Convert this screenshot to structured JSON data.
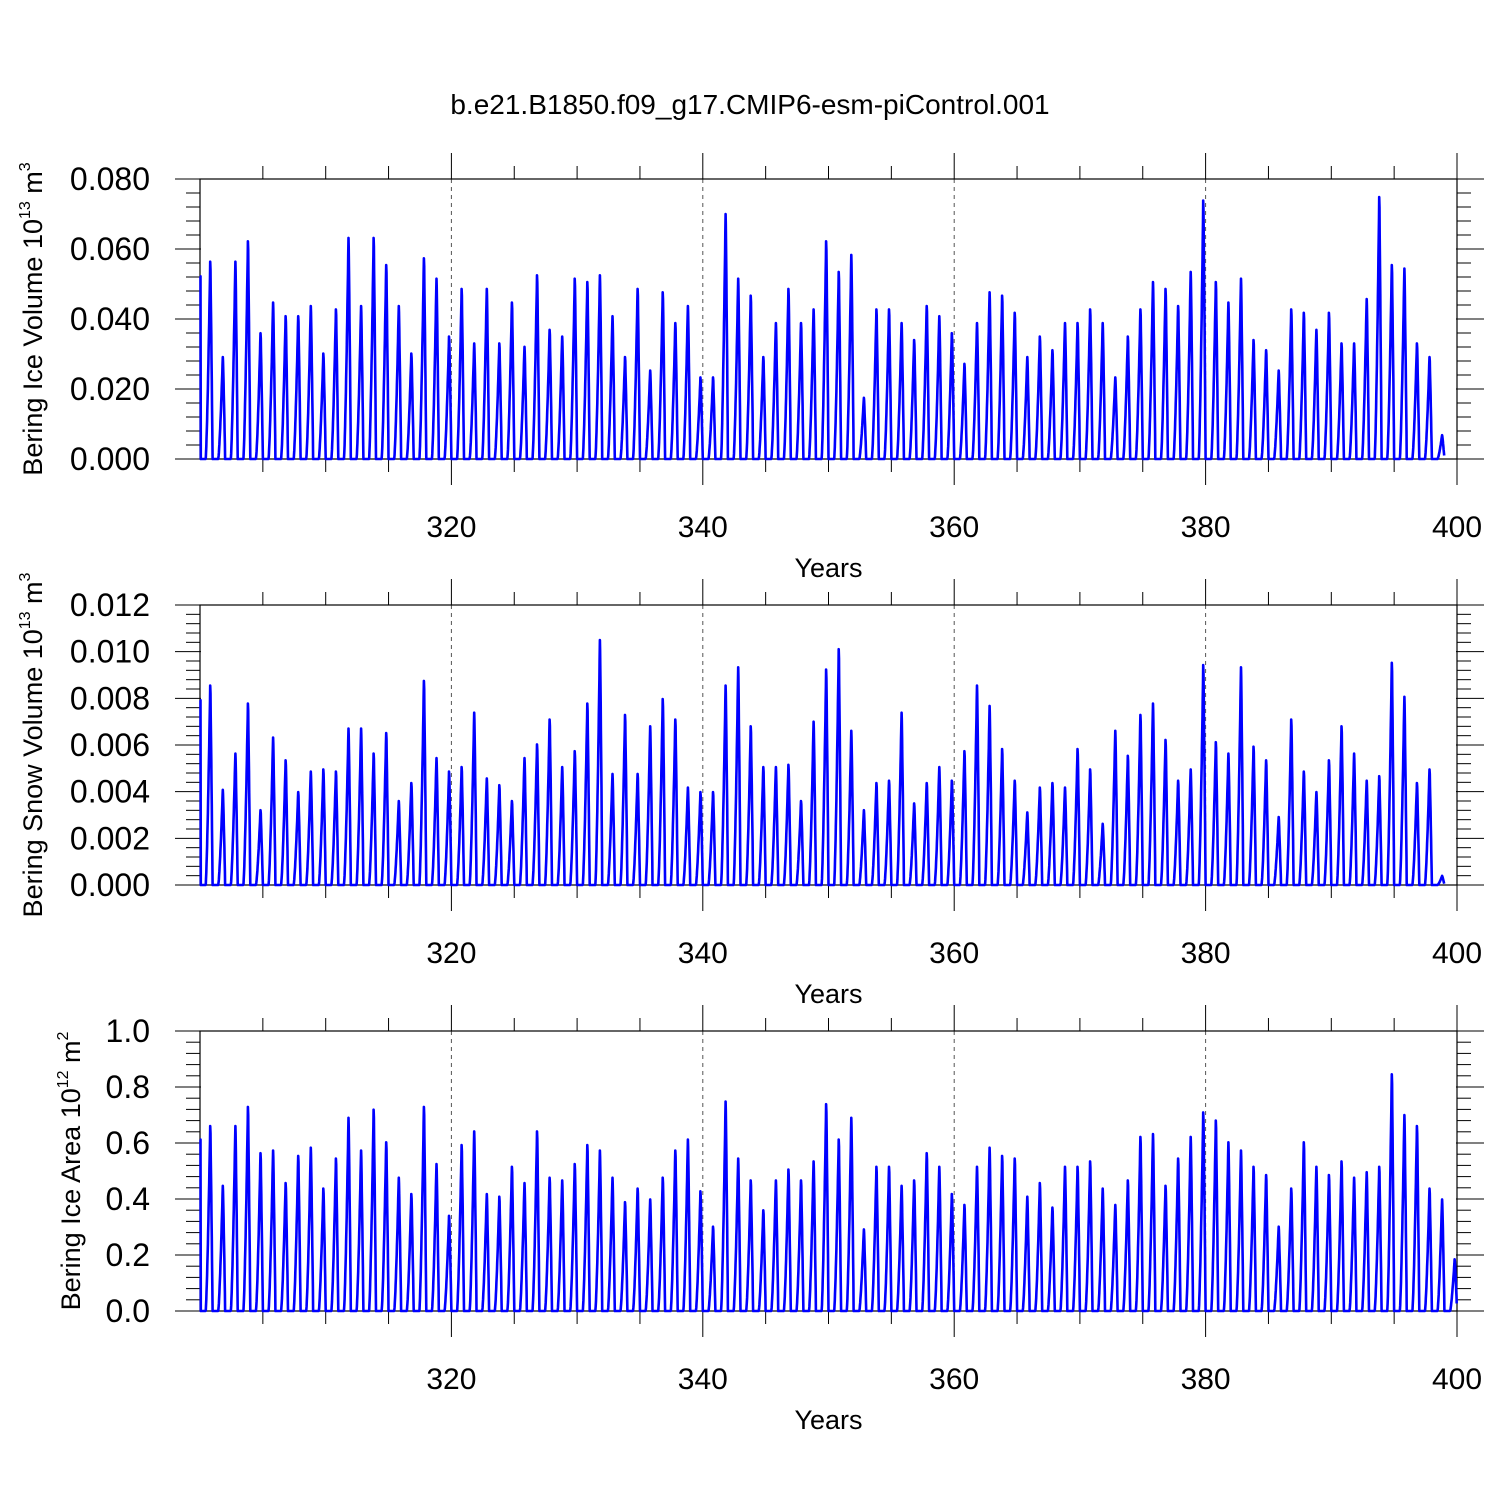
{
  "title": "b.e21.B1850.f09_g17.CMIP6-esm-piControl.001",
  "line_color": "#0000ff",
  "chart_data": [
    {
      "type": "line",
      "ylabel": {
        "main": "Bering Ice Volume 10",
        "exp": "13",
        "unit": " m",
        "unit_exp": "3"
      },
      "xlabel": "Years",
      "xlim": [
        300,
        400
      ],
      "ylim": [
        0,
        0.08
      ],
      "xticks": [
        320,
        340,
        360,
        380,
        400
      ],
      "xtick_labels": [
        "320",
        "340",
        "360",
        "380",
        "400"
      ],
      "yticks": [
        0,
        0.02,
        0.04,
        0.06,
        0.08
      ],
      "ytick_labels": [
        "0.000",
        "0.020",
        "0.040",
        "0.060",
        "0.080"
      ],
      "grid": "dashed-vertical",
      "annual_peaks": [
        0.058,
        0.03,
        0.058,
        0.064,
        0.037,
        0.046,
        0.042,
        0.042,
        0.045,
        0.031,
        0.044,
        0.065,
        0.045,
        0.065,
        0.057,
        0.045,
        0.031,
        0.059,
        0.053,
        0.036,
        0.05,
        0.034,
        0.05,
        0.034,
        0.046,
        0.033,
        0.054,
        0.038,
        0.036,
        0.053,
        0.052,
        0.054,
        0.042,
        0.03,
        0.05,
        0.026,
        0.049,
        0.04,
        0.045,
        0.024,
        0.024,
        0.072,
        0.053,
        0.048,
        0.03,
        0.04,
        0.05,
        0.04,
        0.044,
        0.064,
        0.055,
        0.06,
        0.018,
        0.044,
        0.044,
        0.04,
        0.035,
        0.045,
        0.042,
        0.037,
        0.028,
        0.04,
        0.049,
        0.048,
        0.043,
        0.03,
        0.036,
        0.032,
        0.04,
        0.04,
        0.044,
        0.04,
        0.024,
        0.036,
        0.044,
        0.052,
        0.05,
        0.045,
        0.055,
        0.076,
        0.052,
        0.046,
        0.053,
        0.035,
        0.032,
        0.026,
        0.044,
        0.043,
        0.038,
        0.043,
        0.034,
        0.034,
        0.047,
        0.077,
        0.057,
        0.056,
        0.034,
        0.03,
        0.007
      ]
    },
    {
      "type": "line",
      "ylabel": {
        "main": "Bering Snow Volume 10",
        "exp": "13",
        "unit": " m",
        "unit_exp": "3"
      },
      "xlabel": "Years",
      "xlim": [
        300,
        400
      ],
      "ylim": [
        0,
        0.012
      ],
      "xticks": [
        320,
        340,
        360,
        380,
        400
      ],
      "xtick_labels": [
        "320",
        "340",
        "360",
        "380",
        "400"
      ],
      "yticks": [
        0,
        0.002,
        0.004,
        0.006,
        0.008,
        0.01,
        0.012
      ],
      "ytick_labels": [
        "0.000",
        "0.002",
        "0.004",
        "0.006",
        "0.008",
        "0.010",
        "0.012"
      ],
      "grid": "dashed-vertical",
      "annual_peaks": [
        0.0088,
        0.0042,
        0.0058,
        0.008,
        0.0033,
        0.0065,
        0.0055,
        0.0041,
        0.005,
        0.0051,
        0.005,
        0.0069,
        0.0069,
        0.0058,
        0.0067,
        0.0037,
        0.0045,
        0.009,
        0.0056,
        0.005,
        0.0052,
        0.0076,
        0.0047,
        0.0044,
        0.0037,
        0.0056,
        0.0062,
        0.0073,
        0.0052,
        0.0059,
        0.008,
        0.0108,
        0.0049,
        0.0075,
        0.0049,
        0.007,
        0.0082,
        0.0073,
        0.0043,
        0.0041,
        0.0041,
        0.0088,
        0.0096,
        0.007,
        0.0052,
        0.0052,
        0.0053,
        0.0037,
        0.0072,
        0.0095,
        0.0104,
        0.0068,
        0.0033,
        0.0045,
        0.0046,
        0.0076,
        0.0036,
        0.0045,
        0.0052,
        0.0046,
        0.0059,
        0.0088,
        0.0079,
        0.006,
        0.0046,
        0.0032,
        0.0043,
        0.0045,
        0.0043,
        0.006,
        0.0051,
        0.0027,
        0.0068,
        0.0057,
        0.0075,
        0.008,
        0.0064,
        0.0046,
        0.0051,
        0.0097,
        0.0063,
        0.0058,
        0.0096,
        0.0061,
        0.0055,
        0.003,
        0.0073,
        0.005,
        0.0041,
        0.0055,
        0.007,
        0.0058,
        0.0046,
        0.0048,
        0.0098,
        0.0083,
        0.0045,
        0.0051,
        0.0004
      ]
    },
    {
      "type": "line",
      "ylabel": {
        "main": "Bering Ice Area 10",
        "exp": "12",
        "unit": " m",
        "unit_exp": "2"
      },
      "xlabel": "Years",
      "xlim": [
        300,
        400
      ],
      "ylim": [
        0,
        1.0
      ],
      "xticks": [
        320,
        340,
        360,
        380,
        400
      ],
      "xtick_labels": [
        "320",
        "340",
        "360",
        "380",
        "400"
      ],
      "yticks": [
        0,
        0.2,
        0.4,
        0.6,
        0.8,
        1.0
      ],
      "ytick_labels": [
        "0.0",
        "0.2",
        "0.4",
        "0.6",
        "0.8",
        "1.0"
      ],
      "grid": "dashed-vertical",
      "annual_peaks": [
        0.68,
        0.46,
        0.68,
        0.75,
        0.58,
        0.59,
        0.47,
        0.57,
        0.6,
        0.45,
        0.56,
        0.71,
        0.59,
        0.74,
        0.62,
        0.49,
        0.43,
        0.75,
        0.54,
        0.35,
        0.61,
        0.66,
        0.43,
        0.42,
        0.53,
        0.47,
        0.66,
        0.49,
        0.48,
        0.54,
        0.61,
        0.59,
        0.49,
        0.4,
        0.45,
        0.41,
        0.49,
        0.59,
        0.63,
        0.44,
        0.31,
        0.77,
        0.56,
        0.48,
        0.37,
        0.48,
        0.52,
        0.48,
        0.55,
        0.76,
        0.63,
        0.71,
        0.3,
        0.53,
        0.53,
        0.46,
        0.48,
        0.58,
        0.53,
        0.43,
        0.39,
        0.53,
        0.6,
        0.57,
        0.56,
        0.42,
        0.47,
        0.38,
        0.53,
        0.53,
        0.55,
        0.45,
        0.39,
        0.48,
        0.64,
        0.65,
        0.46,
        0.56,
        0.64,
        0.73,
        0.7,
        0.62,
        0.59,
        0.53,
        0.5,
        0.31,
        0.45,
        0.62,
        0.53,
        0.5,
        0.55,
        0.49,
        0.51,
        0.53,
        0.87,
        0.72,
        0.68,
        0.45,
        0.41,
        0.19
      ]
    }
  ]
}
